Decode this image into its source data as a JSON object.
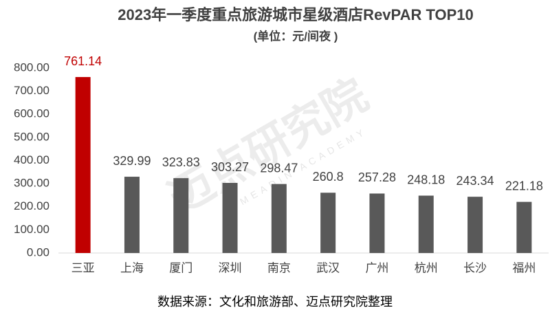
{
  "chart_data": {
    "type": "bar",
    "title": "2023年一季度重点旅游城市星级酒店RevPAR TOP10",
    "subtitle": "(单位：元/间夜 )",
    "source": "数据来源：文化和旅游部、迈点研究院整理",
    "watermark": "迈点研究院",
    "watermark_sub": "MEADIN ACADEMY",
    "categories": [
      "三亚",
      "上海",
      "厦门",
      "深圳",
      "南京",
      "武汉",
      "广州",
      "杭州",
      "长沙",
      "福州"
    ],
    "values": [
      761.14,
      329.99,
      323.83,
      303.27,
      298.47,
      260.8,
      257.28,
      248.18,
      243.34,
      221.18
    ],
    "colors": [
      "#c00000",
      "#595959",
      "#595959",
      "#595959",
      "#595959",
      "#595959",
      "#595959",
      "#595959",
      "#595959",
      "#595959"
    ],
    "label_colors": [
      "#c00000",
      "#404040",
      "#404040",
      "#404040",
      "#404040",
      "#404040",
      "#404040",
      "#404040",
      "#404040",
      "#404040"
    ],
    "ylim": [
      0,
      800
    ],
    "yticks": [
      {
        "value": 0,
        "label": "0.00"
      },
      {
        "value": 100,
        "label": "100.00"
      },
      {
        "value": 200,
        "label": "200.00"
      },
      {
        "value": 300,
        "label": "300.00"
      },
      {
        "value": 400,
        "label": "400.00"
      },
      {
        "value": 500,
        "label": "500.00"
      },
      {
        "value": 600,
        "label": "600.00"
      },
      {
        "value": 700,
        "label": "700.00"
      },
      {
        "value": 800,
        "label": "800.00"
      }
    ],
    "grid": false
  }
}
